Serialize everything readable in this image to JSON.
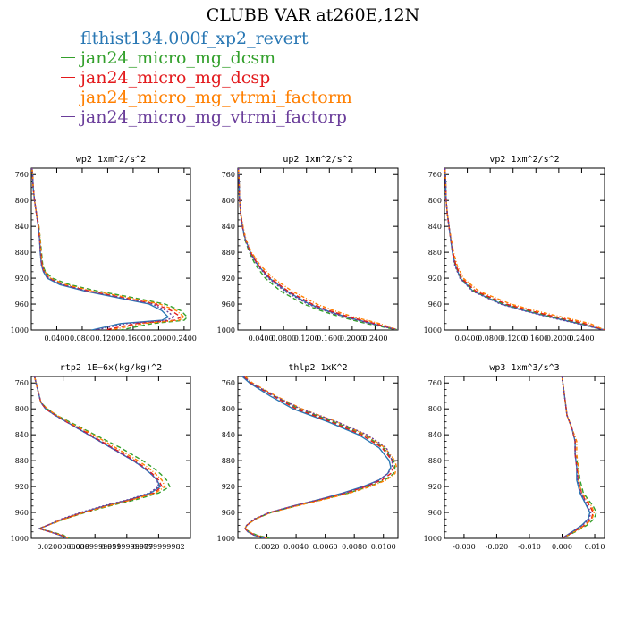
{
  "title": "CLUBB VAR at260E,12N",
  "legend": [
    {
      "label": "flthist134.000f_xp2_revert",
      "color": "#2a78b4"
    },
    {
      "label": "jan24_micro_mg_dcsm",
      "color": "#33a02c"
    },
    {
      "label": "jan24_micro_mg_dcsp",
      "color": "#e31a1c"
    },
    {
      "label": "jan24_micro_mg_vtrmi_factorm",
      "color": "#ff7f00"
    },
    {
      "label": "jan24_micro_mg_vtrmi_factorp",
      "color": "#6a3d9a"
    }
  ],
  "chart_data": [
    {
      "type": "line",
      "title": "wp2  1xm^2/s^2",
      "xlim": [
        0,
        0.25
      ],
      "ylim": [
        1000,
        750
      ],
      "xticks": [
        "0.0400",
        "0.0800",
        "0.1200",
        "0.1600",
        "0.2000",
        "0.2400"
      ],
      "xtick_values": [
        0.04,
        0.08,
        0.12,
        0.16,
        0.2,
        0.24
      ],
      "yticks": [
        760,
        800,
        840,
        880,
        920,
        960,
        1000
      ],
      "y": [
        750,
        760,
        780,
        800,
        820,
        840,
        860,
        880,
        900,
        910,
        920,
        930,
        940,
        950,
        960,
        970,
        980,
        985,
        990,
        1000
      ],
      "series": [
        {
          "name": "flthist134.000f_xp2_revert",
          "x": [
            0.001,
            0.002,
            0.003,
            0.005,
            0.008,
            0.011,
            0.013,
            0.014,
            0.016,
            0.019,
            0.025,
            0.045,
            0.085,
            0.135,
            0.185,
            0.205,
            0.215,
            0.205,
            0.14,
            0.095
          ]
        },
        {
          "name": "jan24_micro_mg_dcsm",
          "x": [
            0.001,
            0.002,
            0.003,
            0.005,
            0.008,
            0.012,
            0.014,
            0.016,
            0.018,
            0.022,
            0.033,
            0.06,
            0.105,
            0.16,
            0.21,
            0.235,
            0.245,
            0.24,
            0.19,
            0.14
          ]
        },
        {
          "name": "jan24_micro_mg_dcsp",
          "x": [
            0.001,
            0.002,
            0.003,
            0.005,
            0.008,
            0.011,
            0.013,
            0.015,
            0.017,
            0.02,
            0.028,
            0.05,
            0.092,
            0.145,
            0.195,
            0.22,
            0.235,
            0.225,
            0.165,
            0.115
          ]
        },
        {
          "name": "jan24_micro_mg_vtrmi_factorm",
          "x": [
            0.001,
            0.002,
            0.003,
            0.005,
            0.008,
            0.012,
            0.014,
            0.015,
            0.017,
            0.021,
            0.03,
            0.054,
            0.098,
            0.152,
            0.202,
            0.228,
            0.24,
            0.232,
            0.175,
            0.125
          ]
        },
        {
          "name": "jan24_micro_mg_vtrmi_factorp",
          "x": [
            0.001,
            0.002,
            0.003,
            0.005,
            0.008,
            0.011,
            0.013,
            0.014,
            0.016,
            0.02,
            0.027,
            0.048,
            0.088,
            0.14,
            0.19,
            0.212,
            0.225,
            0.212,
            0.15,
            0.1
          ]
        }
      ]
    },
    {
      "type": "line",
      "title": "up2  1xm^2/s^2",
      "xlim": [
        0,
        0.28
      ],
      "ylim": [
        1000,
        750
      ],
      "xticks": [
        "0.0400",
        "0.0800",
        "0.1200",
        "0.1600",
        "0.2000",
        "0.2400"
      ],
      "xtick_values": [
        0.04,
        0.08,
        0.12,
        0.16,
        0.2,
        0.24
      ],
      "yticks": [
        760,
        800,
        840,
        880,
        920,
        960,
        1000
      ],
      "y": [
        750,
        770,
        800,
        820,
        840,
        860,
        880,
        900,
        920,
        940,
        960,
        970,
        980,
        990,
        1000
      ],
      "series": [
        {
          "name": "flthist134.000f_xp2_revert",
          "x": [
            0.001,
            0.002,
            0.003,
            0.005,
            0.008,
            0.013,
            0.022,
            0.035,
            0.055,
            0.085,
            0.125,
            0.155,
            0.19,
            0.235,
            0.28
          ]
        },
        {
          "name": "jan24_micro_mg_dcsm",
          "x": [
            0.001,
            0.002,
            0.003,
            0.005,
            0.008,
            0.012,
            0.02,
            0.031,
            0.048,
            0.075,
            0.115,
            0.145,
            0.18,
            0.225,
            0.28
          ]
        },
        {
          "name": "jan24_micro_mg_dcsp",
          "x": [
            0.001,
            0.002,
            0.003,
            0.005,
            0.008,
            0.013,
            0.022,
            0.036,
            0.057,
            0.088,
            0.13,
            0.16,
            0.195,
            0.24,
            0.28
          ]
        },
        {
          "name": "jan24_micro_mg_vtrmi_factorm",
          "x": [
            0.001,
            0.002,
            0.003,
            0.005,
            0.009,
            0.014,
            0.024,
            0.039,
            0.062,
            0.095,
            0.138,
            0.168,
            0.203,
            0.248,
            0.28
          ]
        },
        {
          "name": "jan24_micro_mg_vtrmi_factorp",
          "x": [
            0.001,
            0.002,
            0.003,
            0.005,
            0.008,
            0.013,
            0.021,
            0.034,
            0.053,
            0.082,
            0.122,
            0.152,
            0.187,
            0.232,
            0.28
          ]
        }
      ]
    },
    {
      "type": "line",
      "title": "vp2  1xm^2/s^2",
      "xlim": [
        0,
        0.28
      ],
      "ylim": [
        1000,
        750
      ],
      "xticks": [
        "0.0400",
        "0.0800",
        "0.1200",
        "0.1600",
        "0.2000",
        "0.2400"
      ],
      "xtick_values": [
        0.04,
        0.08,
        0.12,
        0.16,
        0.2,
        0.24
      ],
      "yticks": [
        760,
        800,
        840,
        880,
        920,
        960,
        1000
      ],
      "y": [
        750,
        770,
        800,
        820,
        840,
        860,
        880,
        900,
        920,
        940,
        960,
        970,
        980,
        990,
        1000
      ],
      "series": [
        {
          "name": "flthist134.000f_xp2_revert",
          "x": [
            0.001,
            0.002,
            0.003,
            0.005,
            0.008,
            0.011,
            0.014,
            0.019,
            0.028,
            0.05,
            0.1,
            0.14,
            0.185,
            0.235,
            0.28
          ]
        },
        {
          "name": "jan24_micro_mg_dcsm",
          "x": [
            0.001,
            0.002,
            0.003,
            0.005,
            0.008,
            0.011,
            0.014,
            0.019,
            0.029,
            0.052,
            0.104,
            0.145,
            0.19,
            0.24,
            0.28
          ]
        },
        {
          "name": "jan24_micro_mg_dcsp",
          "x": [
            0.001,
            0.002,
            0.003,
            0.005,
            0.008,
            0.011,
            0.015,
            0.02,
            0.03,
            0.055,
            0.108,
            0.15,
            0.195,
            0.245,
            0.28
          ]
        },
        {
          "name": "jan24_micro_mg_vtrmi_factorm",
          "x": [
            0.001,
            0.002,
            0.003,
            0.005,
            0.008,
            0.012,
            0.016,
            0.022,
            0.033,
            0.06,
            0.116,
            0.158,
            0.205,
            0.255,
            0.28
          ]
        },
        {
          "name": "jan24_micro_mg_vtrmi_factorp",
          "x": [
            0.001,
            0.002,
            0.003,
            0.005,
            0.008,
            0.011,
            0.014,
            0.018,
            0.027,
            0.049,
            0.098,
            0.138,
            0.182,
            0.232,
            0.28
          ]
        }
      ]
    },
    {
      "type": "line",
      "title": "rtp2  1E−6x(kg/kg)^2",
      "xlim": [
        0,
        0.1
      ],
      "ylim": [
        1000,
        750
      ],
      "xticks": [
        "0.0200000000",
        "0.0399999991",
        "0.0599999987",
        "0.0799999982"
      ],
      "xtick_values": [
        0.02,
        0.04,
        0.06,
        0.08
      ],
      "yticks": [
        760,
        800,
        840,
        880,
        920,
        960,
        1000
      ],
      "y": [
        750,
        770,
        790,
        800,
        810,
        820,
        830,
        840,
        850,
        860,
        870,
        880,
        890,
        900,
        910,
        920,
        930,
        940,
        950,
        960,
        970,
        980,
        985,
        990,
        995,
        1000
      ],
      "series": [
        {
          "name": "flthist134.000f_xp2_revert",
          "x": [
            0.002,
            0.004,
            0.006,
            0.009,
            0.015,
            0.022,
            0.029,
            0.036,
            0.043,
            0.05,
            0.057,
            0.064,
            0.07,
            0.075,
            0.079,
            0.081,
            0.075,
            0.062,
            0.046,
            0.032,
            0.02,
            0.01,
            0.005,
            0.012,
            0.018,
            0.022
          ]
        },
        {
          "name": "jan24_micro_mg_dcsm",
          "x": [
            0.002,
            0.004,
            0.006,
            0.01,
            0.016,
            0.024,
            0.032,
            0.04,
            0.048,
            0.056,
            0.063,
            0.07,
            0.076,
            0.081,
            0.085,
            0.087,
            0.08,
            0.066,
            0.049,
            0.034,
            0.021,
            0.01,
            0.005,
            0.013,
            0.02,
            0.024
          ]
        },
        {
          "name": "jan24_micro_mg_dcsp",
          "x": [
            0.002,
            0.004,
            0.006,
            0.009,
            0.015,
            0.022,
            0.03,
            0.037,
            0.044,
            0.051,
            0.058,
            0.065,
            0.071,
            0.076,
            0.08,
            0.082,
            0.077,
            0.063,
            0.047,
            0.033,
            0.02,
            0.01,
            0.005,
            0.012,
            0.019,
            0.023
          ]
        },
        {
          "name": "jan24_micro_mg_vtrmi_factorm",
          "x": [
            0.002,
            0.004,
            0.006,
            0.01,
            0.016,
            0.023,
            0.031,
            0.039,
            0.046,
            0.053,
            0.06,
            0.067,
            0.073,
            0.078,
            0.082,
            0.084,
            0.078,
            0.064,
            0.048,
            0.033,
            0.021,
            0.01,
            0.005,
            0.012,
            0.019,
            0.023
          ]
        },
        {
          "name": "jan24_micro_mg_vtrmi_factorp",
          "x": [
            0.002,
            0.004,
            0.006,
            0.009,
            0.015,
            0.022,
            0.029,
            0.036,
            0.043,
            0.05,
            0.057,
            0.064,
            0.07,
            0.075,
            0.079,
            0.08,
            0.074,
            0.061,
            0.045,
            0.031,
            0.019,
            0.01,
            0.005,
            0.012,
            0.018,
            0.022
          ]
        }
      ]
    },
    {
      "type": "line",
      "title": "thlp2  1xK^2",
      "xlim": [
        0,
        0.011
      ],
      "ylim": [
        1000,
        750
      ],
      "xticks": [
        "0.0020",
        "0.0040",
        "0.0060",
        "0.0080",
        "0.0100"
      ],
      "xtick_values": [
        0.002,
        0.004,
        0.006,
        0.008,
        0.01
      ],
      "yticks": [
        760,
        800,
        840,
        880,
        920,
        960,
        1000
      ],
      "y": [
        750,
        760,
        780,
        800,
        820,
        840,
        860,
        880,
        890,
        900,
        910,
        920,
        930,
        940,
        950,
        960,
        970,
        980,
        985,
        990,
        995,
        1000
      ],
      "series": [
        {
          "name": "flthist134.000f_xp2_revert",
          "x": [
            0.0003,
            0.0008,
            0.0022,
            0.0038,
            0.0062,
            0.0083,
            0.0097,
            0.0104,
            0.0105,
            0.0103,
            0.0097,
            0.0086,
            0.0072,
            0.0056,
            0.0038,
            0.0022,
            0.0012,
            0.0006,
            0.0005,
            0.0007,
            0.0011,
            0.0018
          ]
        },
        {
          "name": "jan24_micro_mg_dcsm",
          "x": [
            0.0004,
            0.0009,
            0.0025,
            0.0042,
            0.0066,
            0.0087,
            0.01,
            0.0107,
            0.0108,
            0.0107,
            0.0101,
            0.009,
            0.0076,
            0.0058,
            0.004,
            0.0023,
            0.0012,
            0.0006,
            0.0005,
            0.0008,
            0.0013,
            0.0022
          ]
        },
        {
          "name": "jan24_micro_mg_dcsp",
          "x": [
            0.0004,
            0.0009,
            0.0024,
            0.004,
            0.0064,
            0.0085,
            0.0099,
            0.0106,
            0.0107,
            0.0105,
            0.0099,
            0.0088,
            0.0074,
            0.0057,
            0.0039,
            0.0022,
            0.0012,
            0.0006,
            0.0005,
            0.0007,
            0.0012,
            0.002
          ]
        },
        {
          "name": "jan24_micro_mg_vtrmi_factorm",
          "x": [
            0.0005,
            0.001,
            0.0026,
            0.0044,
            0.0068,
            0.0088,
            0.0101,
            0.0108,
            0.0109,
            0.0108,
            0.0102,
            0.0091,
            0.0077,
            0.0059,
            0.004,
            0.0023,
            0.0012,
            0.0006,
            0.0005,
            0.0008,
            0.0012,
            0.0021
          ]
        },
        {
          "name": "jan24_micro_mg_vtrmi_factorp",
          "x": [
            0.0004,
            0.0009,
            0.0025,
            0.0043,
            0.0068,
            0.0089,
            0.0102,
            0.0106,
            0.0106,
            0.0103,
            0.0097,
            0.0087,
            0.0073,
            0.0056,
            0.0038,
            0.0022,
            0.0011,
            0.0006,
            0.0005,
            0.0007,
            0.0011,
            0.0019
          ]
        }
      ]
    },
    {
      "type": "line",
      "title": "wp3  1xm^3/s^3",
      "xlim": [
        -0.036,
        0.013
      ],
      "ylim": [
        1000,
        750
      ],
      "xticks": [
        "-0.030",
        "-0.020",
        "-0.010",
        "0.000",
        "0.010"
      ],
      "xtick_values": [
        -0.03,
        -0.02,
        -0.01,
        0.0,
        0.01
      ],
      "yticks": [
        760,
        800,
        840,
        880,
        920,
        960,
        1000
      ],
      "y": [
        750,
        770,
        790,
        810,
        830,
        850,
        870,
        890,
        910,
        930,
        940,
        950,
        960,
        970,
        980,
        990,
        1000
      ],
      "series": [
        {
          "name": "flthist134.000f_xp2_revert",
          "x": [
            0.0,
            0.0005,
            0.001,
            0.0015,
            0.003,
            0.004,
            0.004,
            0.0045,
            0.0045,
            0.0055,
            0.0065,
            0.0075,
            0.0085,
            0.008,
            0.006,
            0.003,
            0.0
          ]
        },
        {
          "name": "jan24_micro_mg_dcsm",
          "x": [
            0.0,
            0.0005,
            0.001,
            0.0015,
            0.003,
            0.004,
            0.004,
            0.005,
            0.0055,
            0.0065,
            0.008,
            0.0095,
            0.0105,
            0.0098,
            0.0075,
            0.004,
            0.0
          ]
        },
        {
          "name": "jan24_micro_mg_dcsp",
          "x": [
            0.0,
            0.0005,
            0.001,
            0.0015,
            0.003,
            0.004,
            0.004,
            0.0045,
            0.005,
            0.006,
            0.007,
            0.0085,
            0.0095,
            0.009,
            0.0068,
            0.0035,
            0.0
          ]
        },
        {
          "name": "jan24_micro_mg_vtrmi_factorm",
          "x": [
            0.0,
            0.0005,
            0.001,
            0.0015,
            0.003,
            0.0045,
            0.0045,
            0.005,
            0.005,
            0.006,
            0.0075,
            0.009,
            0.0098,
            0.0092,
            0.007,
            0.0036,
            0.0
          ]
        },
        {
          "name": "jan24_micro_mg_vtrmi_factorp",
          "x": [
            0.0,
            0.0005,
            0.001,
            0.0015,
            0.003,
            0.004,
            0.004,
            0.0045,
            0.0048,
            0.0058,
            0.0068,
            0.0078,
            0.0088,
            0.0083,
            0.0062,
            0.0032,
            0.0
          ]
        }
      ]
    }
  ]
}
